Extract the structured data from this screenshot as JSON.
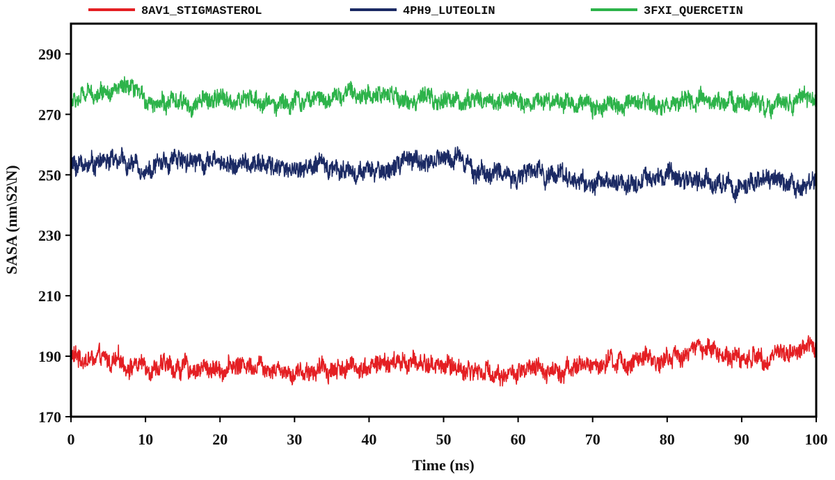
{
  "chart_data": {
    "type": "line",
    "xlabel": "Time (ns)",
    "ylabel": "SASA (nm\\S2\\N)",
    "xlim": [
      0,
      100
    ],
    "ylim": [
      170,
      300
    ],
    "xticks": [
      0,
      10,
      20,
      30,
      40,
      50,
      60,
      70,
      80,
      90,
      100
    ],
    "yticks": [
      170,
      190,
      210,
      230,
      250,
      270,
      290
    ],
    "grid": false,
    "legend_position": "top",
    "series": [
      {
        "name": "8AV1_STIGMASTEROL",
        "color": "#e41f23",
        "noise": 3.2,
        "x": [
          0,
          5,
          10,
          15,
          20,
          25,
          30,
          35,
          40,
          45,
          50,
          55,
          60,
          65,
          70,
          75,
          80,
          85,
          90,
          95,
          100
        ],
        "values": [
          190,
          188,
          187,
          186,
          186,
          188,
          185,
          186,
          187,
          188,
          187,
          185,
          184,
          186,
          187,
          188,
          189,
          193,
          189,
          191,
          193
        ]
      },
      {
        "name": "4PH9_LUTEOLIN",
        "color": "#1b2a64",
        "noise": 3.2,
        "x": [
          0,
          5,
          10,
          15,
          20,
          25,
          30,
          35,
          40,
          45,
          50,
          53,
          54,
          60,
          65,
          68,
          70,
          75,
          80,
          85,
          90,
          95,
          100
        ],
        "values": [
          253,
          255,
          252,
          256,
          254,
          253,
          252,
          253,
          250,
          254,
          255,
          257,
          251,
          250,
          251,
          248,
          247,
          248,
          249,
          248,
          246,
          248,
          247
        ]
      },
      {
        "name": "3FXI_QUERCETIN",
        "color": "#2db34a",
        "noise": 3.0,
        "x": [
          0,
          3,
          5,
          7,
          10,
          15,
          20,
          25,
          30,
          35,
          40,
          45,
          50,
          55,
          60,
          65,
          70,
          75,
          80,
          85,
          90,
          95,
          100
        ],
        "values": [
          274,
          277,
          279,
          278,
          275,
          273,
          275,
          274,
          274,
          276,
          277,
          275,
          274,
          275,
          274,
          275,
          273,
          272,
          273,
          274,
          274,
          274,
          276
        ]
      }
    ]
  }
}
